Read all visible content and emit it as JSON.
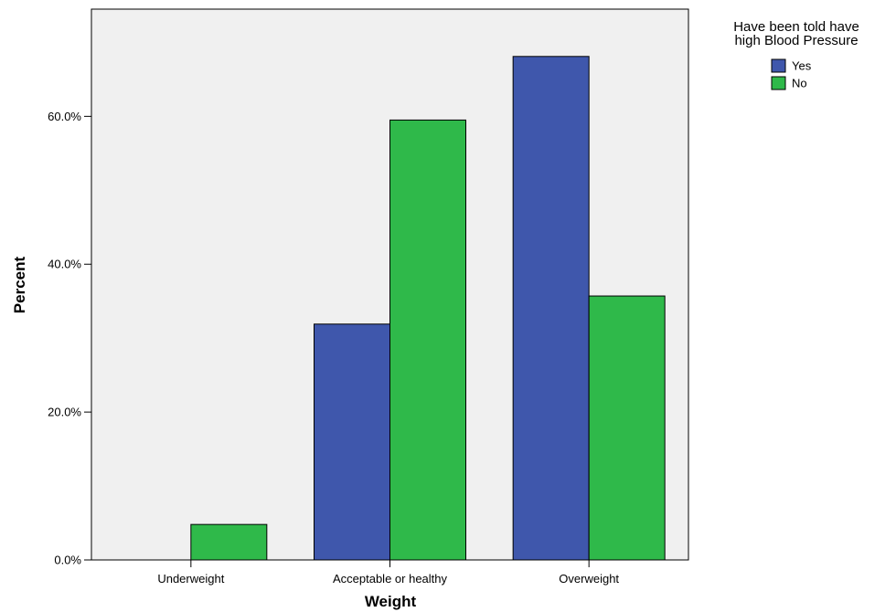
{
  "chart_data": {
    "type": "bar",
    "categories": [
      "Underweight",
      "Acceptable or healthy",
      "Overweight"
    ],
    "series": [
      {
        "name": "Yes",
        "values": [
          0.0,
          31.9,
          68.1
        ],
        "color": "#3F57AC"
      },
      {
        "name": "No",
        "values": [
          4.8,
          59.5,
          35.7
        ],
        "color": "#2FB94A"
      }
    ],
    "xlabel": "Weight",
    "ylabel": "Percent",
    "ylim": [
      0,
      74.5
    ],
    "yticks": [
      {
        "value": 0,
        "label": "0.0%"
      },
      {
        "value": 20,
        "label": "20.0%"
      },
      {
        "value": 40,
        "label": "40.0%"
      },
      {
        "value": 60,
        "label": "60.0%"
      }
    ],
    "legend": {
      "title_lines": [
        "Have been told have",
        "high Blood Pressure"
      ],
      "placement": "top-right"
    },
    "grid": false,
    "plot_background": "#F0F0F0"
  }
}
